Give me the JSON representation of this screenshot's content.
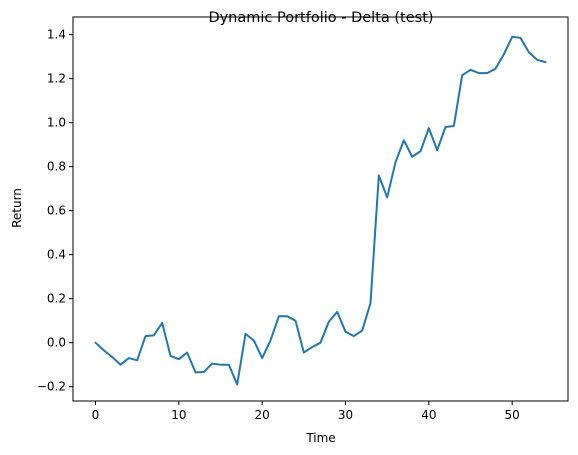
{
  "chart_data": {
    "type": "line",
    "title": "Dynamic Portfolio - Delta (test)",
    "xlabel": "Time",
    "ylabel": "Return",
    "xlim": [
      -2.7,
      56.7
    ],
    "ylim": [
      -0.265,
      1.48
    ],
    "xticks": [
      0,
      10,
      20,
      30,
      40,
      50
    ],
    "yticks": [
      -0.2,
      0.0,
      0.2,
      0.4,
      0.6,
      0.8,
      1.0,
      1.2,
      1.4
    ],
    "xtick_labels": [
      "0",
      "10",
      "20",
      "30",
      "40",
      "50"
    ],
    "ytick_labels": [
      "−0.2",
      "0.0",
      "0.2",
      "0.4",
      "0.6",
      "0.8",
      "1.0",
      "1.2",
      "1.4"
    ],
    "grid": false,
    "line_color": "#1f77b4",
    "series": [
      {
        "x": [
          0,
          1,
          2,
          3,
          4,
          5,
          6,
          7,
          8,
          9,
          10,
          11,
          12,
          13,
          14,
          15,
          16,
          17,
          18,
          19,
          20,
          21,
          22,
          23,
          24,
          25,
          26,
          27,
          28,
          29,
          30,
          31,
          32,
          33,
          34,
          35,
          36,
          37,
          38,
          39,
          40,
          41,
          42,
          43,
          44,
          45,
          46,
          47,
          48,
          49,
          50,
          51,
          52,
          53,
          54
        ],
        "values": [
          0.0,
          -0.035,
          -0.065,
          -0.1,
          -0.07,
          -0.08,
          0.03,
          0.033,
          0.09,
          -0.06,
          -0.075,
          -0.045,
          -0.135,
          -0.133,
          -0.095,
          -0.1,
          -0.1,
          -0.19,
          0.04,
          0.01,
          -0.07,
          0.01,
          0.12,
          0.12,
          0.1,
          -0.045,
          -0.02,
          0.0,
          0.095,
          0.14,
          0.05,
          0.03,
          0.055,
          0.18,
          0.76,
          0.66,
          0.82,
          0.92,
          0.845,
          0.87,
          0.975,
          0.875,
          0.98,
          0.985,
          1.215,
          1.24,
          1.225,
          1.225,
          1.245,
          1.31,
          1.39,
          1.385,
          1.32,
          1.285,
          1.275
        ]
      }
    ]
  }
}
